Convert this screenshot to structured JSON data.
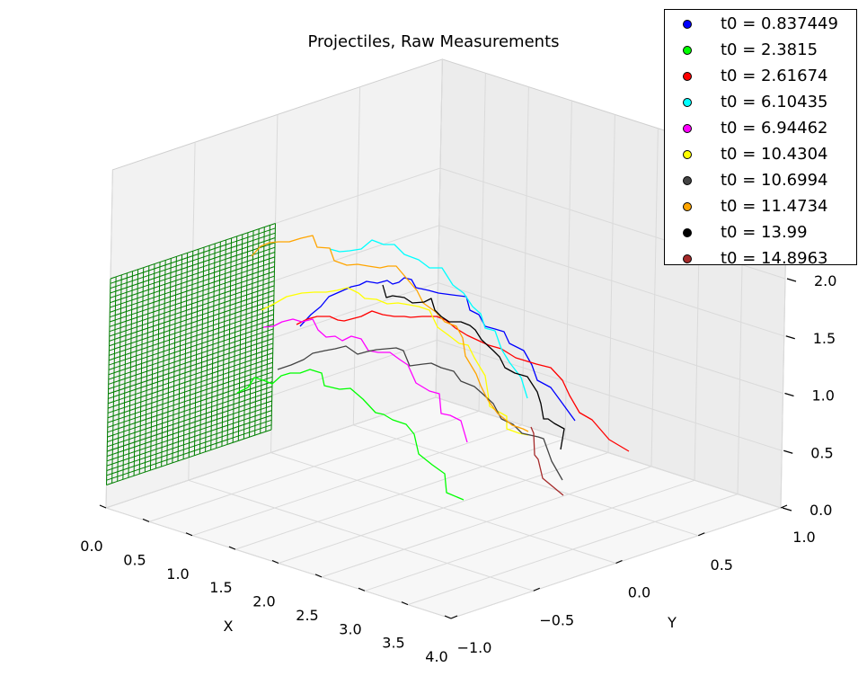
{
  "chart_data": {
    "type": "line3d",
    "title": "Projectiles, Raw Measurements",
    "xlabel": "X",
    "ylabel": "Y",
    "zlabel": "",
    "xlim": [
      0.0,
      4.0
    ],
    "ylim": [
      -1.0,
      1.0
    ],
    "zlim": [
      0.0,
      2.0
    ],
    "xticks": [
      "0.0",
      "0.5",
      "1.0",
      "1.5",
      "2.0",
      "2.5",
      "3.0",
      "3.5",
      "4.0"
    ],
    "yticks": [
      "−1.0",
      "−0.5",
      "0.0",
      "0.5",
      "1.0"
    ],
    "zticks": [
      "0.0",
      "0.5",
      "1.0",
      "1.5",
      "2.0"
    ],
    "legend_position": "top-right",
    "plane": {
      "x": 0.0,
      "y_range": [
        -1.0,
        0.0
      ],
      "z_range": [
        0.2,
        2.0
      ],
      "color": "#008000"
    },
    "series": [
      {
        "name": "t0 = 0.837449",
        "color": "#0000ff"
      },
      {
        "name": "t0 = 2.3815",
        "color": "#00ff00"
      },
      {
        "name": "t0 = 2.61674",
        "color": "#ff0000"
      },
      {
        "name": "t0 = 6.10435",
        "color": "#00ffff"
      },
      {
        "name": "t0 = 6.94462",
        "color": "#ff00ff"
      },
      {
        "name": "t0 = 10.4304",
        "color": "#ffff00"
      },
      {
        "name": "t0 = 10.6994",
        "color": "#444444"
      },
      {
        "name": "t0 = 11.4734",
        "color": "#ffa500"
      },
      {
        "name": "t0 = 13.99",
        "color": "#000000"
      },
      {
        "name": "t0 = 14.8963",
        "color": "#a52a2a"
      }
    ]
  }
}
